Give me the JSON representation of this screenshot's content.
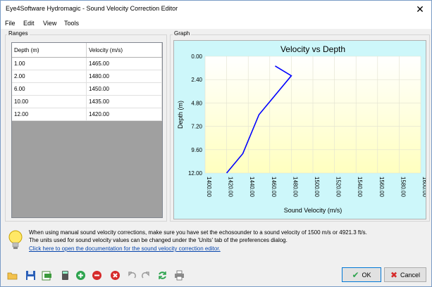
{
  "window": {
    "title": "Eye4Software Hydromagic - Sound Velocity Correction Editor",
    "close_glyph": "✕"
  },
  "menu": [
    "File",
    "Edit",
    "View",
    "Tools"
  ],
  "ranges": {
    "label": "Ranges",
    "columns": [
      "Depth (m)",
      "Velocity (m/s)"
    ],
    "rows": [
      [
        "1.00",
        "1465.00"
      ],
      [
        "2.00",
        "1480.00"
      ],
      [
        "6.00",
        "1450.00"
      ],
      [
        "10.00",
        "1435.00"
      ],
      [
        "12.00",
        "1420.00"
      ]
    ]
  },
  "graph": {
    "label": "Graph"
  },
  "chart_data": {
    "type": "line",
    "title": "Velocity vs Depth",
    "xlabel": "Sound Velocity (m/s)",
    "ylabel": "Depth (m)",
    "x": [
      1465,
      1480,
      1450,
      1435,
      1420
    ],
    "y": [
      1,
      2,
      6,
      10,
      12
    ],
    "xlim": [
      1400,
      1600
    ],
    "ylim": [
      12,
      0
    ],
    "x_ticks": [
      "1400.00",
      "1420.00",
      "1440.00",
      "1460.00",
      "1480.00",
      "1500.00",
      "1520.00",
      "1540.00",
      "1560.00",
      "1580.00",
      "1600.00"
    ],
    "y_ticks": [
      "0.00",
      "2.40",
      "4.80",
      "7.20",
      "9.60",
      "12.00"
    ],
    "line_color": "#0000ff",
    "background_gradient": [
      "#ffffff",
      "#ffffbf"
    ],
    "grid": true
  },
  "info": {
    "line1": "When using manual sound velocity corrections, make sure you have set the echosounder to a sound velocity of 1500 m/s or 4921.3 ft/s.",
    "line2": "The units used for sound velocity values can be changed under the 'Units' tab of the preferences dialog.",
    "link": "Click here to open the documentation for the sound velocity correction editor.",
    "icon": "lightbulb-icon"
  },
  "toolbar": {
    "icons": [
      "open-folder-icon",
      "save-icon",
      "export-icon",
      "calculator-icon",
      "add-icon",
      "remove-icon",
      "delete-icon",
      "undo-icon",
      "redo-icon",
      "refresh-icon",
      "print-icon"
    ]
  },
  "buttons": {
    "ok": "OK",
    "cancel": "Cancel"
  },
  "colors": {
    "accent": "#0078d7",
    "link": "#0645ad",
    "chart_bg": "#cdf7fa"
  }
}
